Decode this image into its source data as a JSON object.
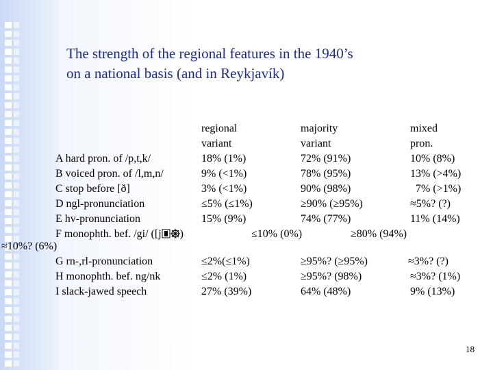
{
  "slide": {
    "title_line1": "The strength of the regional features in the 1940’s",
    "title_line2": "on a national basis (and in Reykjavík)",
    "page_number": "18"
  },
  "headers": {
    "regional": [
      "regional",
      "variant"
    ],
    "majority": [
      "majority",
      "variant"
    ],
    "mixed": [
      "mixed",
      "pron."
    ]
  },
  "rows": [
    {
      "label": "A  hard pron. of /p,t,k/",
      "regional": "18% (1%)",
      "majority": "72% (91%)",
      "mixed": "10% (8%)"
    },
    {
      "label": "B  voiced pron. of /l,m,n/",
      "regional": "9% (<1%)",
      "majority": "78% (95%)",
      "mixed": "13% (>4%)"
    },
    {
      "label": "C  stop before [ð]",
      "regional": "3% (<1%)",
      "majority": "90% (98%)",
      "mixed": "7% (>1%)"
    },
    {
      "label": "D  ngl-pronunciation",
      "regional": "≤5% (≤1%)",
      "majority": "≥90% (≥95%)",
      "mixed": "≈5%? (?)"
    },
    {
      "label": "E  hv-pronunciation",
      "regional": "15% (9%)",
      "majority": "74%  (77%)",
      "mixed": "11%  (14%)"
    },
    {
      "label": "F  monophth. bef. /gi/ ([j",
      "regional": "≤10% (0%)",
      "majority": "≥80% (94%)",
      "mixed": "≈10%? (6%)"
    },
    {
      "label": "G  rn-,rl-pronunciation",
      "regional": "≤2%(≤1%)",
      "majority": "≥95%? (≥95%)",
      "mixed": "≈3%? (?)"
    },
    {
      "label": "H  monophth. bef. ng/nk",
      "regional": "≤2% (1%)",
      "majority": "≥95%? (98%)",
      "mixed": "≈3%? (1%)"
    },
    {
      "label": "I  slack-jawed speech",
      "regional": "27% (39%)",
      "majority": "64% (48%)",
      "mixed": "9% (13%)"
    }
  ],
  "row_f_suffix": ")",
  "glyph_icons": [
    "phonetic-glyph-1-icon",
    "phonetic-glyph-2-icon"
  ]
}
